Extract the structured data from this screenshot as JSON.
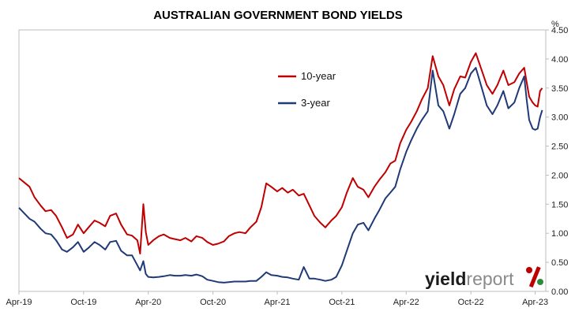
{
  "chart_data": {
    "type": "line",
    "title": "AUSTRALIAN GOVERNMENT BOND YIELDS",
    "ylabel": "%",
    "ylim": [
      0,
      4.5
    ],
    "yticks": [
      "0.00",
      "0.50",
      "1.00",
      "1.50",
      "2.00",
      "2.50",
      "3.00",
      "3.50",
      "4.00",
      "4.50"
    ],
    "xlim": [
      "2019-04-01",
      "2023-05-01"
    ],
    "xticks": [
      "Apr-19",
      "Oct-19",
      "Apr-20",
      "Oct-20",
      "Apr-21",
      "Oct-21",
      "Apr-22",
      "Oct-22",
      "Apr-23"
    ],
    "xtick_dates": [
      "2019-04-01",
      "2019-10-01",
      "2020-04-01",
      "2020-10-01",
      "2021-04-01",
      "2021-10-01",
      "2022-04-01",
      "2022-10-01",
      "2023-04-01"
    ],
    "legend_position": "upper-middle-right",
    "grid": false,
    "series": [
      {
        "name": "10-year",
        "color": "#c00000",
        "points": [
          [
            "2019-04-01",
            1.95
          ],
          [
            "2019-04-15",
            1.88
          ],
          [
            "2019-05-01",
            1.8
          ],
          [
            "2019-05-15",
            1.62
          ],
          [
            "2019-06-01",
            1.48
          ],
          [
            "2019-06-15",
            1.38
          ],
          [
            "2019-07-01",
            1.4
          ],
          [
            "2019-07-15",
            1.3
          ],
          [
            "2019-08-01",
            1.1
          ],
          [
            "2019-08-15",
            0.92
          ],
          [
            "2019-09-01",
            0.98
          ],
          [
            "2019-09-15",
            1.15
          ],
          [
            "2019-10-01",
            1.0
          ],
          [
            "2019-10-15",
            1.1
          ],
          [
            "2019-11-01",
            1.22
          ],
          [
            "2019-11-15",
            1.18
          ],
          [
            "2019-12-01",
            1.12
          ],
          [
            "2019-12-15",
            1.3
          ],
          [
            "2020-01-01",
            1.34
          ],
          [
            "2020-01-15",
            1.15
          ],
          [
            "2020-02-01",
            0.98
          ],
          [
            "2020-02-15",
            0.96
          ],
          [
            "2020-03-01",
            0.88
          ],
          [
            "2020-03-09",
            0.65
          ],
          [
            "2020-03-18",
            1.5
          ],
          [
            "2020-03-25",
            1.02
          ],
          [
            "2020-04-01",
            0.8
          ],
          [
            "2020-04-15",
            0.88
          ],
          [
            "2020-05-01",
            0.95
          ],
          [
            "2020-05-15",
            0.98
          ],
          [
            "2020-06-01",
            0.92
          ],
          [
            "2020-06-15",
            0.9
          ],
          [
            "2020-07-01",
            0.88
          ],
          [
            "2020-07-15",
            0.92
          ],
          [
            "2020-08-01",
            0.86
          ],
          [
            "2020-08-15",
            0.95
          ],
          [
            "2020-09-01",
            0.92
          ],
          [
            "2020-09-15",
            0.85
          ],
          [
            "2020-10-01",
            0.8
          ],
          [
            "2020-10-15",
            0.82
          ],
          [
            "2020-11-01",
            0.86
          ],
          [
            "2020-11-15",
            0.95
          ],
          [
            "2020-12-01",
            1.0
          ],
          [
            "2020-12-15",
            1.02
          ],
          [
            "2021-01-01",
            1.0
          ],
          [
            "2021-01-15",
            1.1
          ],
          [
            "2021-02-01",
            1.2
          ],
          [
            "2021-02-15",
            1.45
          ],
          [
            "2021-03-01",
            1.86
          ],
          [
            "2021-03-15",
            1.8
          ],
          [
            "2021-04-01",
            1.72
          ],
          [
            "2021-04-15",
            1.78
          ],
          [
            "2021-05-01",
            1.7
          ],
          [
            "2021-05-15",
            1.75
          ],
          [
            "2021-06-01",
            1.65
          ],
          [
            "2021-06-15",
            1.68
          ],
          [
            "2021-07-01",
            1.48
          ],
          [
            "2021-07-15",
            1.3
          ],
          [
            "2021-08-01",
            1.18
          ],
          [
            "2021-08-15",
            1.1
          ],
          [
            "2021-09-01",
            1.22
          ],
          [
            "2021-09-15",
            1.3
          ],
          [
            "2021-10-01",
            1.45
          ],
          [
            "2021-10-15",
            1.7
          ],
          [
            "2021-11-01",
            1.95
          ],
          [
            "2021-11-15",
            1.8
          ],
          [
            "2021-12-01",
            1.75
          ],
          [
            "2021-12-15",
            1.62
          ],
          [
            "2022-01-01",
            1.8
          ],
          [
            "2022-01-15",
            1.92
          ],
          [
            "2022-02-01",
            2.05
          ],
          [
            "2022-02-15",
            2.2
          ],
          [
            "2022-03-01",
            2.25
          ],
          [
            "2022-03-15",
            2.55
          ],
          [
            "2022-04-01",
            2.78
          ],
          [
            "2022-04-15",
            2.92
          ],
          [
            "2022-05-01",
            3.1
          ],
          [
            "2022-05-15",
            3.3
          ],
          [
            "2022-06-01",
            3.5
          ],
          [
            "2022-06-15",
            4.05
          ],
          [
            "2022-07-01",
            3.7
          ],
          [
            "2022-07-15",
            3.55
          ],
          [
            "2022-08-01",
            3.2
          ],
          [
            "2022-08-15",
            3.48
          ],
          [
            "2022-09-01",
            3.7
          ],
          [
            "2022-09-15",
            3.68
          ],
          [
            "2022-10-01",
            3.95
          ],
          [
            "2022-10-15",
            4.1
          ],
          [
            "2022-11-01",
            3.8
          ],
          [
            "2022-11-15",
            3.55
          ],
          [
            "2022-12-01",
            3.4
          ],
          [
            "2022-12-15",
            3.55
          ],
          [
            "2023-01-01",
            3.8
          ],
          [
            "2023-01-15",
            3.55
          ],
          [
            "2023-02-01",
            3.6
          ],
          [
            "2023-02-15",
            3.75
          ],
          [
            "2023-03-01",
            3.85
          ],
          [
            "2023-03-08",
            3.6
          ],
          [
            "2023-03-15",
            3.35
          ],
          [
            "2023-03-25",
            3.25
          ],
          [
            "2023-04-01",
            3.2
          ],
          [
            "2023-04-08",
            3.18
          ],
          [
            "2023-04-15",
            3.45
          ],
          [
            "2023-04-21",
            3.5
          ]
        ]
      },
      {
        "name": "3-year",
        "color": "#1f3a77",
        "points": [
          [
            "2019-04-01",
            1.44
          ],
          [
            "2019-04-15",
            1.35
          ],
          [
            "2019-05-01",
            1.25
          ],
          [
            "2019-05-15",
            1.2
          ],
          [
            "2019-06-01",
            1.08
          ],
          [
            "2019-06-15",
            1.0
          ],
          [
            "2019-07-01",
            0.98
          ],
          [
            "2019-07-15",
            0.88
          ],
          [
            "2019-08-01",
            0.72
          ],
          [
            "2019-08-15",
            0.68
          ],
          [
            "2019-09-01",
            0.76
          ],
          [
            "2019-09-15",
            0.85
          ],
          [
            "2019-10-01",
            0.68
          ],
          [
            "2019-10-15",
            0.75
          ],
          [
            "2019-11-01",
            0.85
          ],
          [
            "2019-11-15",
            0.8
          ],
          [
            "2019-12-01",
            0.72
          ],
          [
            "2019-12-15",
            0.85
          ],
          [
            "2020-01-01",
            0.87
          ],
          [
            "2020-01-15",
            0.7
          ],
          [
            "2020-02-01",
            0.62
          ],
          [
            "2020-02-15",
            0.62
          ],
          [
            "2020-03-01",
            0.45
          ],
          [
            "2020-03-09",
            0.36
          ],
          [
            "2020-03-18",
            0.52
          ],
          [
            "2020-03-25",
            0.3
          ],
          [
            "2020-04-01",
            0.25
          ],
          [
            "2020-04-15",
            0.24
          ],
          [
            "2020-05-01",
            0.25
          ],
          [
            "2020-05-15",
            0.26
          ],
          [
            "2020-06-01",
            0.28
          ],
          [
            "2020-06-15",
            0.27
          ],
          [
            "2020-07-01",
            0.27
          ],
          [
            "2020-07-15",
            0.28
          ],
          [
            "2020-08-01",
            0.27
          ],
          [
            "2020-08-15",
            0.29
          ],
          [
            "2020-09-01",
            0.26
          ],
          [
            "2020-09-15",
            0.2
          ],
          [
            "2020-10-01",
            0.18
          ],
          [
            "2020-10-15",
            0.16
          ],
          [
            "2020-11-01",
            0.15
          ],
          [
            "2020-11-15",
            0.16
          ],
          [
            "2020-12-01",
            0.17
          ],
          [
            "2020-12-15",
            0.17
          ],
          [
            "2021-01-01",
            0.17
          ],
          [
            "2021-01-15",
            0.18
          ],
          [
            "2021-02-01",
            0.18
          ],
          [
            "2021-02-15",
            0.25
          ],
          [
            "2021-03-01",
            0.33
          ],
          [
            "2021-03-15",
            0.28
          ],
          [
            "2021-04-01",
            0.27
          ],
          [
            "2021-04-15",
            0.25
          ],
          [
            "2021-05-01",
            0.24
          ],
          [
            "2021-05-15",
            0.22
          ],
          [
            "2021-06-01",
            0.2
          ],
          [
            "2021-06-15",
            0.42
          ],
          [
            "2021-07-01",
            0.22
          ],
          [
            "2021-07-15",
            0.22
          ],
          [
            "2021-08-01",
            0.2
          ],
          [
            "2021-08-15",
            0.18
          ],
          [
            "2021-09-01",
            0.2
          ],
          [
            "2021-09-15",
            0.25
          ],
          [
            "2021-10-01",
            0.45
          ],
          [
            "2021-10-15",
            0.7
          ],
          [
            "2021-11-01",
            1.0
          ],
          [
            "2021-11-15",
            1.15
          ],
          [
            "2021-12-01",
            1.18
          ],
          [
            "2021-12-15",
            1.05
          ],
          [
            "2022-01-01",
            1.25
          ],
          [
            "2022-01-15",
            1.4
          ],
          [
            "2022-02-01",
            1.6
          ],
          [
            "2022-02-15",
            1.7
          ],
          [
            "2022-03-01",
            1.8
          ],
          [
            "2022-03-15",
            2.1
          ],
          [
            "2022-04-01",
            2.4
          ],
          [
            "2022-04-15",
            2.6
          ],
          [
            "2022-05-01",
            2.8
          ],
          [
            "2022-05-15",
            2.95
          ],
          [
            "2022-06-01",
            3.1
          ],
          [
            "2022-06-15",
            3.8
          ],
          [
            "2022-07-01",
            3.2
          ],
          [
            "2022-07-15",
            3.1
          ],
          [
            "2022-08-01",
            2.8
          ],
          [
            "2022-08-15",
            3.05
          ],
          [
            "2022-09-01",
            3.4
          ],
          [
            "2022-09-15",
            3.5
          ],
          [
            "2022-10-01",
            3.75
          ],
          [
            "2022-10-15",
            3.85
          ],
          [
            "2022-11-01",
            3.5
          ],
          [
            "2022-11-15",
            3.2
          ],
          [
            "2022-12-01",
            3.05
          ],
          [
            "2022-12-15",
            3.2
          ],
          [
            "2023-01-01",
            3.45
          ],
          [
            "2023-01-15",
            3.15
          ],
          [
            "2023-02-01",
            3.25
          ],
          [
            "2023-02-15",
            3.5
          ],
          [
            "2023-03-01",
            3.7
          ],
          [
            "2023-03-08",
            3.3
          ],
          [
            "2023-03-15",
            2.95
          ],
          [
            "2023-03-25",
            2.8
          ],
          [
            "2023-04-01",
            2.78
          ],
          [
            "2023-04-08",
            2.8
          ],
          [
            "2023-04-15",
            3.0
          ],
          [
            "2023-04-21",
            3.12
          ]
        ]
      }
    ]
  },
  "logo": {
    "main": "yield",
    "report": "report",
    "mark": "%",
    "mark_color_top": "#c00000",
    "mark_color_bottom": "#2e8b3d"
  }
}
